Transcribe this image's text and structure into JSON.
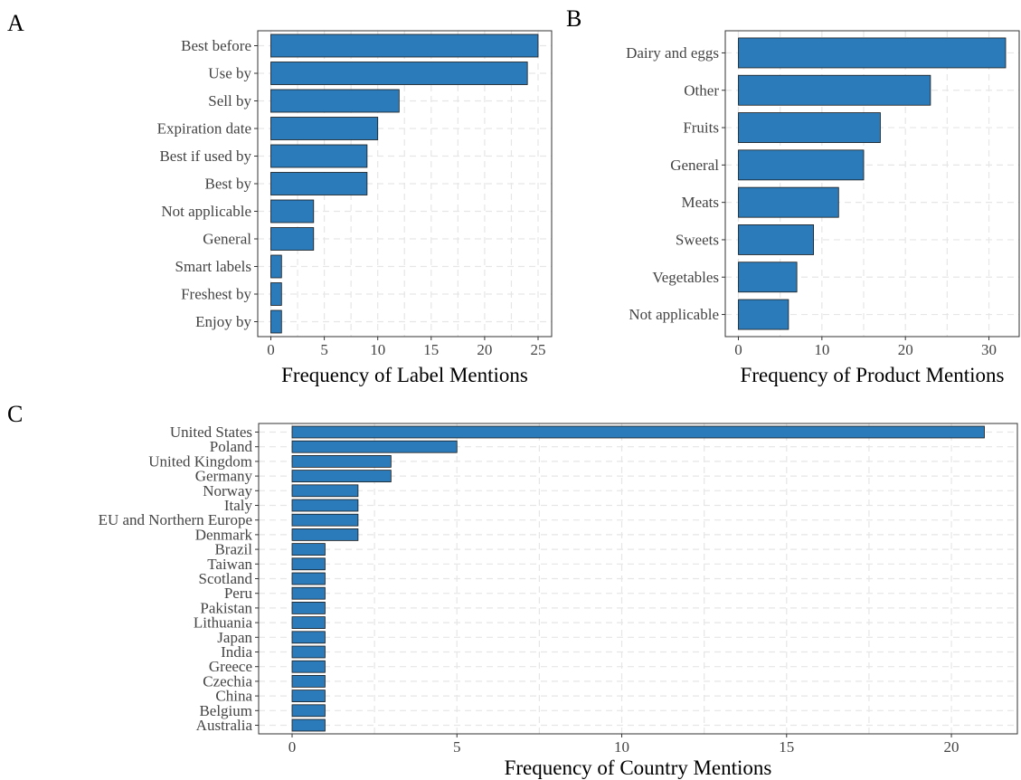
{
  "chart_data": [
    {
      "panel": "A",
      "type": "bar",
      "orientation": "horizontal",
      "categories": [
        "Best before",
        "Use by",
        "Sell by",
        "Expiration date",
        "Best if used by",
        "Best by",
        "Not applicable",
        "General",
        "Smart labels",
        "Freshest by",
        "Enjoy by"
      ],
      "values": [
        25,
        24,
        12,
        10,
        9,
        9,
        4,
        4,
        1,
        1,
        1
      ],
      "xlabel": "Frequency of Label Mentions",
      "xlim": [
        0,
        26
      ],
      "xticks": [
        0,
        5,
        10,
        15,
        20,
        25
      ],
      "bar_color": "#2b7bba",
      "grid": true
    },
    {
      "panel": "B",
      "type": "bar",
      "orientation": "horizontal",
      "categories": [
        "Dairy and eggs",
        "Other",
        "Fruits",
        "General",
        "Meats",
        "Sweets",
        "Vegetables",
        "Not applicable"
      ],
      "values": [
        32,
        23,
        17,
        15,
        12,
        9,
        7,
        6
      ],
      "xlabel": "Frequency of Product Mentions",
      "xlim": [
        0,
        34
      ],
      "xticks": [
        0,
        10,
        20,
        30
      ],
      "bar_color": "#2b7bba",
      "grid": true
    },
    {
      "panel": "C",
      "type": "bar",
      "orientation": "horizontal",
      "categories": [
        "United States",
        "Poland",
        "United Kingdom",
        "Germany",
        "Norway",
        "Italy",
        "EU and Northern Europe",
        "Denmark",
        "Brazil",
        "Taiwan",
        "Scotland",
        "Peru",
        "Pakistan",
        "Lithuania",
        "Japan",
        "India",
        "Greece",
        "Czechia",
        "China",
        "Belgium",
        "Australia"
      ],
      "values": [
        21,
        5,
        3,
        3,
        2,
        2,
        2,
        2,
        1,
        1,
        1,
        1,
        1,
        1,
        1,
        1,
        1,
        1,
        1,
        1,
        1
      ],
      "xlabel": "Frequency of Country Mentions",
      "xlim": [
        0,
        22
      ],
      "xticks": [
        0,
        5,
        10,
        15,
        20
      ],
      "bar_color": "#2b7bba",
      "grid": true
    }
  ]
}
